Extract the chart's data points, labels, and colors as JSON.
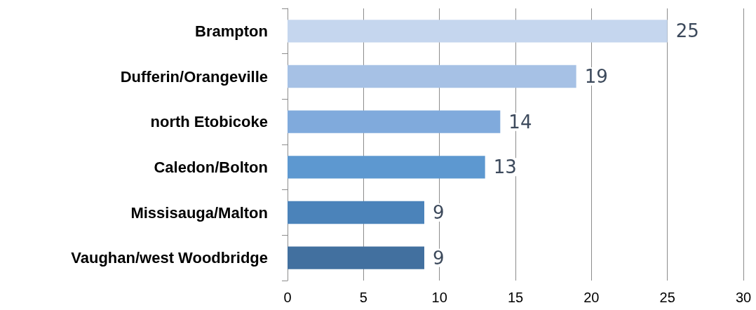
{
  "chart_data": {
    "type": "bar",
    "orientation": "horizontal",
    "categories": [
      "Brampton",
      "Dufferin/Orangeville",
      "north Etobicoke",
      "Caledon/Bolton",
      "Missisauga/Malton",
      "Vaughan/west Woodbridge"
    ],
    "values": [
      25,
      19,
      14,
      13,
      9,
      9
    ],
    "colors": [
      "#c5d6ee",
      "#a6c1e5",
      "#80aadc",
      "#5d98d0",
      "#4b83ba",
      "#42709f"
    ],
    "xlim": [
      0,
      30
    ],
    "xticks": [
      0,
      5,
      10,
      15,
      20,
      25,
      30
    ],
    "grid": "x",
    "data_labels": true
  }
}
